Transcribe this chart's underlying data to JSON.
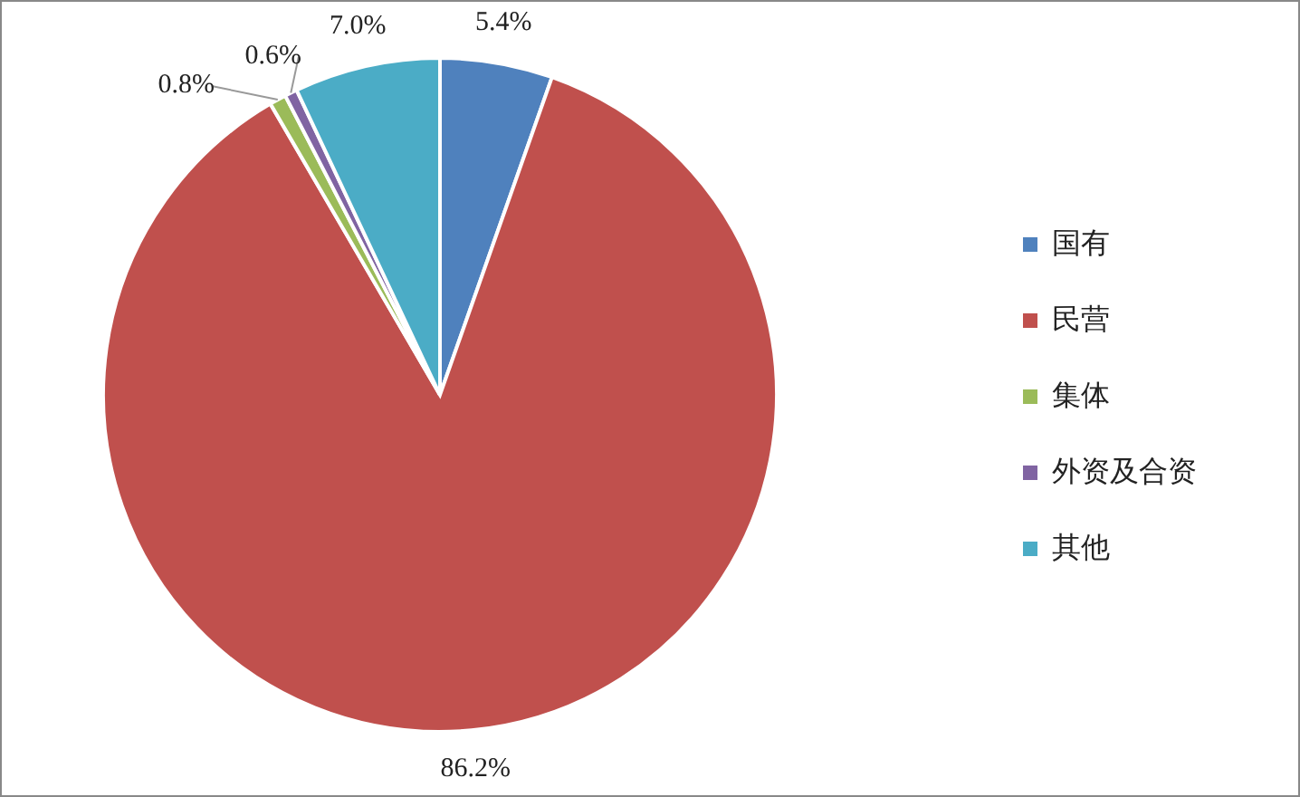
{
  "chart_data": {
    "type": "pie",
    "categories": [
      "国有",
      "民营",
      "集体",
      "外资及合资",
      "其他"
    ],
    "values": [
      5.4,
      86.2,
      0.8,
      0.6,
      7.0
    ],
    "colors": [
      "#4f81bd",
      "#c0504d",
      "#9bbb59",
      "#8064a2",
      "#4bacc6"
    ],
    "value_labels": [
      "5.4%",
      "86.2%",
      "0.8%",
      "0.6%",
      "7.0%"
    ],
    "legend": "right"
  }
}
